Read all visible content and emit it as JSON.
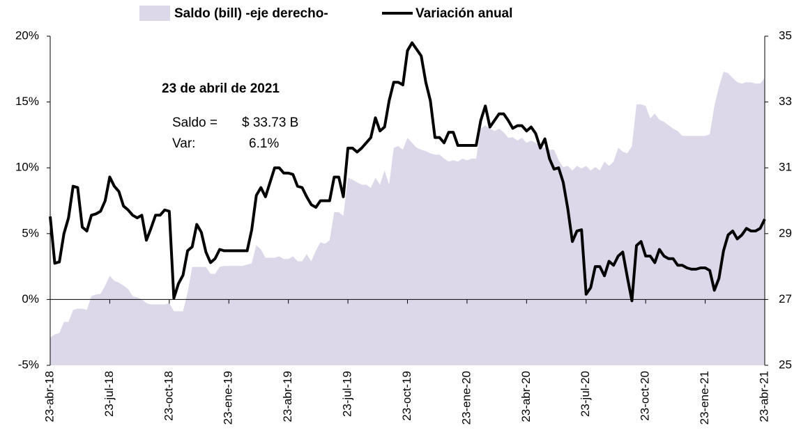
{
  "chart_data": {
    "type": "line",
    "categories": [
      "23-abr-18",
      null,
      null,
      null,
      null,
      null,
      null,
      null,
      null,
      null,
      null,
      null,
      null,
      "23-jul-18",
      null,
      null,
      null,
      null,
      null,
      null,
      null,
      null,
      null,
      null,
      null,
      null,
      "23-oct-18",
      null,
      null,
      null,
      null,
      null,
      null,
      null,
      null,
      null,
      null,
      null,
      null,
      "23-ene-19",
      null,
      null,
      null,
      null,
      null,
      null,
      null,
      null,
      null,
      null,
      null,
      null,
      "23-abr-19",
      null,
      null,
      null,
      null,
      null,
      null,
      null,
      null,
      null,
      null,
      null,
      null,
      "23-jul-19",
      null,
      null,
      null,
      null,
      null,
      null,
      null,
      null,
      null,
      null,
      null,
      null,
      "23-oct-19",
      null,
      null,
      null,
      null,
      null,
      null,
      null,
      null,
      null,
      null,
      null,
      null,
      "23-ene-20",
      null,
      null,
      null,
      null,
      null,
      null,
      null,
      null,
      null,
      null,
      null,
      null,
      "23-abr-20",
      null,
      null,
      null,
      null,
      null,
      null,
      null,
      null,
      null,
      null,
      null,
      null,
      "23-jul-20",
      null,
      null,
      null,
      null,
      null,
      null,
      null,
      null,
      null,
      null,
      null,
      null,
      "23-oct-20",
      null,
      null,
      null,
      null,
      null,
      null,
      null,
      null,
      null,
      null,
      null,
      null,
      "23-ene-21",
      null,
      null,
      null,
      null,
      null,
      null,
      null,
      null,
      null,
      null,
      null,
      null,
      "23-abr-21"
    ],
    "series": [
      {
        "name": "Saldo (bill) -eje derecho-",
        "type": "area",
        "axis": "y2",
        "color": "#dcd8ea",
        "values": [
          25.84,
          25.94,
          25.98,
          26.32,
          26.32,
          26.68,
          26.72,
          26.72,
          26.68,
          27.1,
          27.15,
          27.17,
          27.42,
          27.72,
          27.57,
          27.51,
          27.42,
          27.32,
          27.1,
          27.06,
          27.0,
          26.89,
          26.85,
          26.85,
          26.85,
          26.85,
          26.89,
          26.64,
          26.64,
          26.64,
          27.21,
          27.99,
          27.99,
          27.99,
          27.99,
          27.78,
          27.78,
          27.99,
          28.02,
          28.02,
          28.02,
          28.02,
          28.02,
          28.06,
          28.1,
          28.65,
          28.52,
          28.27,
          28.27,
          28.27,
          28.31,
          28.23,
          28.23,
          28.31,
          28.16,
          28.16,
          28.38,
          28.16,
          28.48,
          28.74,
          28.69,
          28.8,
          29.65,
          29.65,
          29.54,
          30.7,
          30.64,
          30.56,
          30.49,
          30.49,
          30.39,
          30.7,
          30.49,
          30.92,
          30.49,
          31.61,
          31.66,
          31.55,
          31.91,
          31.76,
          31.61,
          31.55,
          31.51,
          31.44,
          31.4,
          31.4,
          31.28,
          31.19,
          31.23,
          31.19,
          31.28,
          31.23,
          31.28,
          31.28,
          32.19,
          32.29,
          32.19,
          32.12,
          32.19,
          32.08,
          31.91,
          31.93,
          31.83,
          31.91,
          31.76,
          31.83,
          31.76,
          31.66,
          31.61,
          31.55,
          31.55,
          31.23,
          31.02,
          31.06,
          30.92,
          31.06,
          30.98,
          31.06,
          30.92,
          31.02,
          30.92,
          31.19,
          31.06,
          31.19,
          31.61,
          31.49,
          31.44,
          31.66,
          32.93,
          32.93,
          32.88,
          32.5,
          32.65,
          32.46,
          32.4,
          32.29,
          32.19,
          32.12,
          31.97,
          31.97,
          31.97,
          31.97,
          31.97,
          31.97,
          32.02,
          32.88,
          33.46,
          33.92,
          33.88,
          33.73,
          33.6,
          33.56,
          33.6,
          33.6,
          33.56,
          33.56,
          33.73
        ]
      },
      {
        "name": "Variación anual",
        "type": "line",
        "color": "#000000",
        "values": [
          6.3,
          2.75,
          2.85,
          5.0,
          6.2,
          8.6,
          8.5,
          5.5,
          5.2,
          6.4,
          6.5,
          6.7,
          7.5,
          9.3,
          8.6,
          8.2,
          7.1,
          6.8,
          6.4,
          6.2,
          6.4,
          4.5,
          5.4,
          6.4,
          6.4,
          6.8,
          6.7,
          0.1,
          1.2,
          1.85,
          3.7,
          4.0,
          5.7,
          5.1,
          3.6,
          2.8,
          3.1,
          3.8,
          3.7,
          3.7,
          3.7,
          3.7,
          3.7,
          3.7,
          5.3,
          7.9,
          8.5,
          7.8,
          8.9,
          10.0,
          10.0,
          9.6,
          9.6,
          9.5,
          8.6,
          8.5,
          7.8,
          7.2,
          7.0,
          7.5,
          7.5,
          7.5,
          9.3,
          9.3,
          7.8,
          11.5,
          11.5,
          11.2,
          11.5,
          11.9,
          12.3,
          13.8,
          12.8,
          13.1,
          15.1,
          16.5,
          16.5,
          16.3,
          18.9,
          19.5,
          19.0,
          18.5,
          16.5,
          15.1,
          12.3,
          12.3,
          11.9,
          12.7,
          12.7,
          11.7,
          11.7,
          11.7,
          11.7,
          11.7,
          13.6,
          14.7,
          13.1,
          13.6,
          14.1,
          14.1,
          13.6,
          13.0,
          13.2,
          13.2,
          12.8,
          13.1,
          12.6,
          11.5,
          12.2,
          10.7,
          9.9,
          10.0,
          8.9,
          6.9,
          4.4,
          5.2,
          5.3,
          0.4,
          0.9,
          2.5,
          2.5,
          1.8,
          2.9,
          2.6,
          3.3,
          3.6,
          1.7,
          -0.1,
          4.1,
          4.4,
          3.3,
          3.3,
          2.8,
          3.8,
          3.3,
          3.1,
          3.1,
          2.6,
          2.6,
          2.4,
          2.3,
          2.3,
          2.4,
          2.4,
          2.2,
          0.7,
          1.6,
          3.7,
          4.9,
          5.2,
          4.6,
          4.9,
          5.4,
          5.2,
          5.2,
          5.4,
          6.1
        ]
      }
    ],
    "ylim": [
      -5,
      20
    ],
    "yticks": [
      {
        "value": -5,
        "label": "-5%"
      },
      {
        "value": 0,
        "label": "0%"
      },
      {
        "value": 5,
        "label": "5%"
      },
      {
        "value": 10,
        "label": "10%"
      },
      {
        "value": 15,
        "label": "15%"
      },
      {
        "value": 20,
        "label": "20%"
      }
    ],
    "y2lim": [
      25,
      35
    ],
    "y2ticks": [
      25,
      27,
      29,
      31,
      33,
      35
    ],
    "annotation": {
      "title": "23 de abril de 2021",
      "rows": [
        [
          "Saldo =",
          "$ 33.73 B"
        ],
        [
          "Var:",
          "6.1%"
        ]
      ]
    }
  }
}
